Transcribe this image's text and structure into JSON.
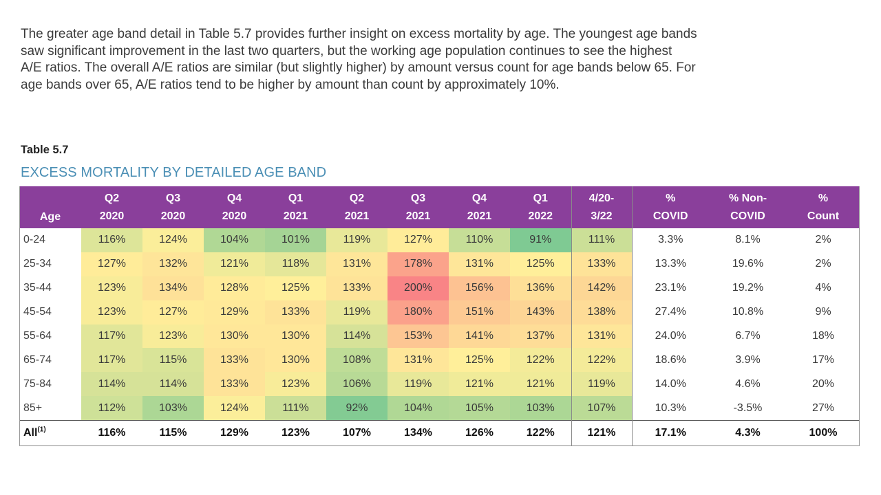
{
  "intro": {
    "lines": [
      "The greater age band detail in Table 5.7 provides further insight on excess mortality by age. The youngest age bands",
      "saw significant improvement in the last two quarters, but the working age population continues to see the highest",
      "A/E ratios. The overall A/E ratios are similar (but slightly higher) by amount versus count for age bands below 65. For",
      "age bands over 65, A/E ratios tend to be higher by amount than count by approximately 10%."
    ]
  },
  "table_label": "Table 5.7",
  "table_title": "EXCESS MORTALITY BY DETAILED AGE BAND",
  "table": {
    "age_header": "Age",
    "quarter_headers": [
      {
        "l1": "Q2",
        "l2": "2020"
      },
      {
        "l1": "Q3",
        "l2": "2020"
      },
      {
        "l1": "Q4",
        "l2": "2020"
      },
      {
        "l1": "Q1",
        "l2": "2021"
      },
      {
        "l1": "Q2",
        "l2": "2021"
      },
      {
        "l1": "Q3",
        "l2": "2021"
      },
      {
        "l1": "Q4",
        "l2": "2021"
      },
      {
        "l1": "Q1",
        "l2": "2022"
      }
    ],
    "period_header": {
      "l1": "4/20-",
      "l2": "3/22"
    },
    "pct_headers": [
      {
        "l1": "%",
        "l2": "COVID"
      },
      {
        "l1": "% Non-",
        "l2": "COVID"
      },
      {
        "l1": "%",
        "l2": "Count"
      }
    ],
    "rows": [
      {
        "age": "0-24",
        "q": [
          "116%",
          "124%",
          "104%",
          "101%",
          "119%",
          "127%",
          "110%",
          "91%"
        ],
        "period": "111%",
        "covid": "3.3%",
        "noncovid": "8.1%",
        "count": "2%"
      },
      {
        "age": "25-34",
        "q": [
          "127%",
          "132%",
          "121%",
          "118%",
          "131%",
          "178%",
          "131%",
          "125%"
        ],
        "period": "133%",
        "covid": "13.3%",
        "noncovid": "19.6%",
        "count": "2%"
      },
      {
        "age": "35-44",
        "q": [
          "123%",
          "134%",
          "128%",
          "125%",
          "133%",
          "200%",
          "156%",
          "136%"
        ],
        "period": "142%",
        "covid": "23.1%",
        "noncovid": "19.2%",
        "count": "4%"
      },
      {
        "age": "45-54",
        "q": [
          "123%",
          "127%",
          "129%",
          "133%",
          "119%",
          "180%",
          "151%",
          "143%"
        ],
        "period": "138%",
        "covid": "27.4%",
        "noncovid": "10.8%",
        "count": "9%"
      },
      {
        "age": "55-64",
        "q": [
          "117%",
          "123%",
          "130%",
          "130%",
          "114%",
          "153%",
          "141%",
          "137%"
        ],
        "period": "131%",
        "covid": "24.0%",
        "noncovid": "6.7%",
        "count": "18%"
      },
      {
        "age": "65-74",
        "q": [
          "117%",
          "115%",
          "133%",
          "130%",
          "108%",
          "131%",
          "125%",
          "122%"
        ],
        "period": "122%",
        "covid": "18.6%",
        "noncovid": "3.9%",
        "count": "17%"
      },
      {
        "age": "75-84",
        "q": [
          "114%",
          "114%",
          "133%",
          "123%",
          "106%",
          "119%",
          "121%",
          "121%"
        ],
        "period": "119%",
        "covid": "14.0%",
        "noncovid": "4.6%",
        "count": "20%"
      },
      {
        "age": "85+",
        "q": [
          "112%",
          "103%",
          "124%",
          "111%",
          "92%",
          "104%",
          "105%",
          "103%"
        ],
        "period": "107%",
        "covid": "10.3%",
        "noncovid": "-3.5%",
        "count": "27%"
      }
    ],
    "total": {
      "age": "All",
      "age_sup": "(1)",
      "q": [
        "116%",
        "115%",
        "129%",
        "123%",
        "107%",
        "134%",
        "126%",
        "122%"
      ],
      "period": "121%",
      "covid": "17.1%",
      "noncovid": "4.3%",
      "count": "100%"
    }
  },
  "colors": {
    "header_bg": "#8a3f9b",
    "title_blue": "#4b8fb5",
    "scale_low_green": "#63be7b",
    "scale_mid_yellow": "#ffeb84",
    "scale_high_red": "#f8696b"
  }
}
